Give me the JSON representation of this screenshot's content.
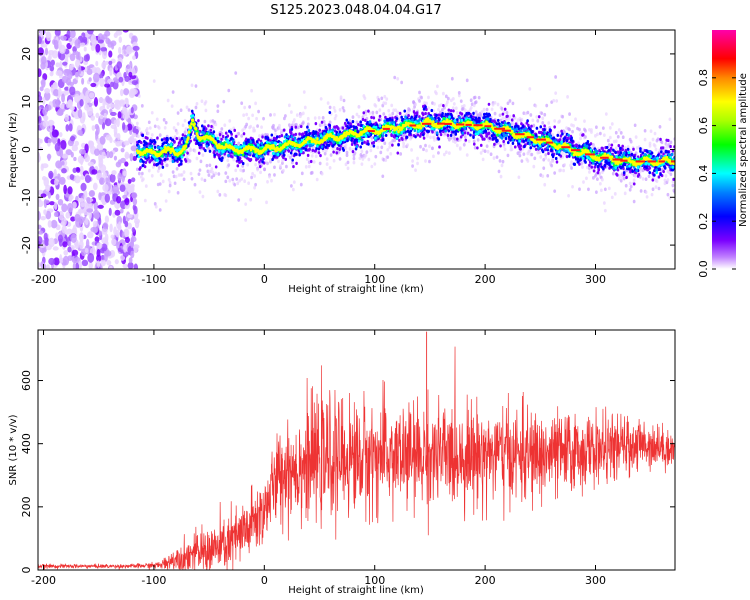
{
  "title": "S125.2023.048.04.04.G17",
  "chart_data": [
    {
      "type": "heatmap",
      "xlabel": "Height of straight line (km)",
      "ylabel": "Frequency (Hz)",
      "xlim": [
        -205,
        372
      ],
      "ylim": [
        -25,
        25
      ],
      "xticks": [
        -200,
        -100,
        0,
        100,
        200,
        300
      ],
      "yticks": [
        -20,
        -10,
        0,
        10,
        20
      ],
      "colorbar": {
        "label": "Normalized spectral amplitude",
        "range": [
          0,
          1
        ],
        "ticks": [
          0.0,
          0.2,
          0.4,
          0.6,
          0.8
        ],
        "colormap": [
          "#ffffff",
          "#7a00ff",
          "#0000ff",
          "#00ffff",
          "#00ff00",
          "#ffff00",
          "#ff0000",
          "#ff00aa"
        ]
      },
      "ridge": {
        "x": [
          -115,
          -100,
          -90,
          -80,
          -70,
          -65,
          -60,
          -50,
          -40,
          -30,
          0,
          50,
          100,
          150,
          200,
          250,
          300,
          330,
          372
        ],
        "y": [
          0,
          -1,
          0,
          -1,
          1,
          6,
          3,
          2,
          1,
          0,
          0,
          2,
          4,
          5.5,
          5,
          2,
          -1.5,
          -2.5,
          -2.5
        ]
      },
      "noise_region": {
        "x_start": -205,
        "x_end": -115
      }
    },
    {
      "type": "line",
      "xlabel": "Height of straight line (km)",
      "ylabel": "SNR (10 * v/v)",
      "xlim": [
        -205,
        372
      ],
      "ylim": [
        0,
        760
      ],
      "xticks": [
        -200,
        -100,
        0,
        100,
        200,
        300
      ],
      "yticks": [
        0,
        200,
        400,
        600
      ],
      "color": "#ee3333",
      "envelope": {
        "x": [
          -205,
          -120,
          -95,
          -80,
          -60,
          -40,
          -20,
          0,
          10,
          20,
          30,
          50,
          100,
          150,
          200,
          250,
          300,
          350,
          372
        ],
        "mean": [
          12,
          12,
          15,
          35,
          55,
          70,
          110,
          190,
          280,
          320,
          330,
          350,
          360,
          360,
          370,
          360,
          380,
          400,
          380
        ],
        "spread": [
          6,
          6,
          10,
          40,
          60,
          80,
          100,
          100,
          120,
          150,
          160,
          170,
          160,
          150,
          140,
          130,
          100,
          70,
          50
        ]
      },
      "peak": {
        "x": 147,
        "y": 755
      }
    }
  ]
}
